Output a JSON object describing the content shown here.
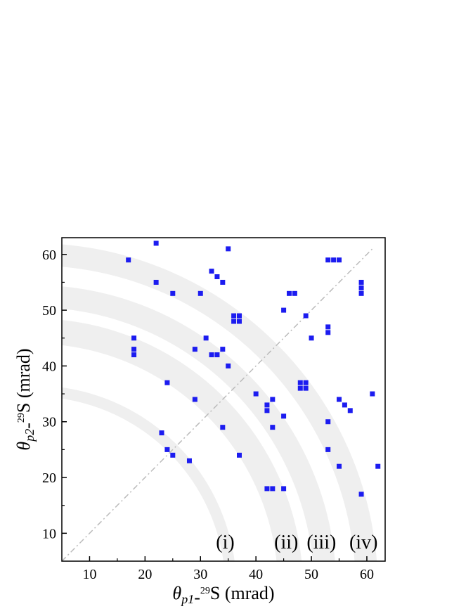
{
  "chart_data": {
    "type": "scatter",
    "xlabel": {
      "theta": "θ",
      "sub": "p1",
      "dash": "-",
      "sup": "29",
      "rest": "S (mrad)"
    },
    "ylabel": {
      "theta": "θ",
      "sub": "p2",
      "dash": "-",
      "sup": "29",
      "rest": "S (mrad)"
    },
    "xlim": [
      5,
      63.3
    ],
    "ylim": [
      5,
      63
    ],
    "xticks": [
      10,
      20,
      30,
      40,
      50,
      60
    ],
    "yticks": [
      10,
      20,
      30,
      40,
      50,
      60
    ],
    "xminorticks": [
      15,
      25,
      35,
      45,
      55
    ],
    "yminorticks": [
      15,
      25,
      35,
      45,
      55
    ],
    "bands": [
      {
        "label": "(i)",
        "r": [
          34.5,
          36.5
        ]
      },
      {
        "label": "(ii)",
        "r": [
          44,
          48.5
        ]
      },
      {
        "label": "(iii)",
        "r": [
          50.5,
          54.5
        ]
      },
      {
        "label": "(iv)",
        "r": [
          58,
          62
        ]
      }
    ],
    "band_color": "#efefef",
    "diagonal": [
      5,
      61
    ],
    "diagonal_color": "#bbbbbb",
    "series": [
      {
        "color": "#1c1cf0",
        "x": [
          17,
          22,
          22,
          25,
          30,
          35,
          32,
          33,
          34,
          36,
          37,
          36,
          37,
          18,
          18,
          18,
          29,
          31,
          32,
          33,
          34,
          35,
          24,
          29,
          23,
          24,
          25,
          28,
          34,
          37,
          40,
          42,
          42,
          43,
          43,
          45,
          42,
          43,
          45,
          45,
          46,
          47,
          49,
          50,
          48,
          49,
          48,
          49,
          53,
          54,
          55,
          53,
          53,
          53,
          53,
          55,
          56,
          57,
          55,
          59,
          59,
          59,
          61,
          62,
          59
        ],
        "values": [
          59,
          62,
          55,
          53,
          53,
          61,
          57,
          56,
          55,
          49,
          49,
          48,
          48,
          45,
          43,
          42,
          43,
          45,
          42,
          42,
          43,
          40,
          37,
          34,
          28,
          25,
          24,
          23,
          29,
          24,
          35,
          33,
          32,
          34,
          29,
          31,
          18,
          18,
          18,
          50,
          53,
          53,
          49,
          45,
          37,
          37,
          36,
          36,
          59,
          59,
          59,
          47,
          46,
          30,
          25,
          34,
          33,
          32,
          22,
          55,
          54,
          53,
          35,
          22,
          17
        ]
      }
    ]
  }
}
